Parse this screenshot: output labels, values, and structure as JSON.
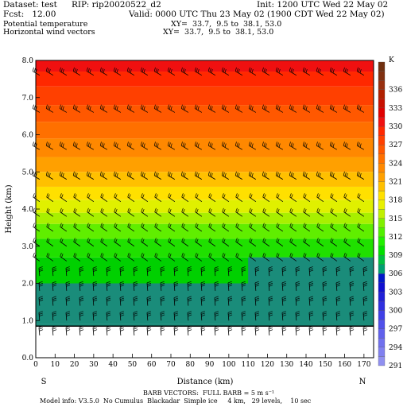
{
  "header": {
    "dataset": "Dataset: test",
    "rip": "RIP: rip20020522_d2",
    "init": "Init: 1200 UTC Wed 22 May 02",
    "fcst": "Fcst:   12.00",
    "valid": "Valid: 0000 UTC Thu 23 May 02 (1900 CDT Wed 22 May 02)",
    "field1": "Potential temperature",
    "field1_xy": "XY=  33.7,  9.5 to  38.1, 53.0",
    "field2": "Horizontal wind vectors",
    "field2_xy": "XY=  33.7,  9.5 to  38.1, 53.0"
  },
  "footer": {
    "barb_note": "BARB VECTORS:  FULL BARB = 5 m s⁻¹",
    "model_info": "Model info: V3.5.0  No Cumulus  Blackadar  Simple ice     4 km,   29 levels,    10 sec",
    "south": "S",
    "north": "N"
  },
  "colors": {
    "terrain_white": "#ffffff",
    "teal": "#1a8c7a",
    "barb": "#000000"
  },
  "chart_data": {
    "type": "heatmap",
    "title": "",
    "xlabel": "Distance (km)",
    "ylabel": "Height (km)",
    "xlim": [
      0,
      175
    ],
    "ylim": [
      0,
      8
    ],
    "x_ticks": [
      "0",
      "10",
      "20",
      "30",
      "40",
      "50",
      "60",
      "70",
      "80",
      "90",
      "100",
      "110",
      "120",
      "130",
      "140",
      "150",
      "160",
      "170"
    ],
    "y_ticks": [
      "0.0",
      "1.0",
      "2.0",
      "3.0",
      "4.0",
      "5.0",
      "6.0",
      "7.0",
      "8.0"
    ],
    "colorbar_unit": "K",
    "colorbar_levels": [
      {
        "value": "291",
        "color": "#9090f0"
      },
      {
        "value": "",
        "color": "#8080f0"
      },
      {
        "value": "294",
        "color": "#7070ee"
      },
      {
        "value": "",
        "color": "#6060ec"
      },
      {
        "value": "297",
        "color": "#5050ea"
      },
      {
        "value": "",
        "color": "#4040e6"
      },
      {
        "value": "300",
        "color": "#3030e0"
      },
      {
        "value": "",
        "color": "#2020d8"
      },
      {
        "value": "303",
        "color": "#1010d0"
      },
      {
        "value": "",
        "color": "#0018c8"
      },
      {
        "value": "306",
        "color": "#00a070"
      },
      {
        "value": "",
        "color": "#00c040"
      },
      {
        "value": "309",
        "color": "#00e000"
      },
      {
        "value": "",
        "color": "#20f000"
      },
      {
        "value": "312",
        "color": "#50f000"
      },
      {
        "value": "",
        "color": "#80f000"
      },
      {
        "value": "315",
        "color": "#c0f000"
      },
      {
        "value": "",
        "color": "#e8f000"
      },
      {
        "value": "318",
        "color": "#ffe000"
      },
      {
        "value": "",
        "color": "#ffc000"
      },
      {
        "value": "321",
        "color": "#ffa000"
      },
      {
        "value": "",
        "color": "#ff8800"
      },
      {
        "value": "324",
        "color": "#ff7000"
      },
      {
        "value": "",
        "color": "#ff5800"
      },
      {
        "value": "327",
        "color": "#ff4000"
      },
      {
        "value": "",
        "color": "#ff2800"
      },
      {
        "value": "330",
        "color": "#f01010"
      },
      {
        "value": "",
        "color": "#e00000"
      },
      {
        "value": "333",
        "color": "#c81000"
      },
      {
        "value": "",
        "color": "#b02000"
      },
      {
        "value": "336",
        "color": "#983010"
      },
      {
        "value": "",
        "color": "#803010"
      },
      {
        "value": "",
        "color": "#703010"
      }
    ],
    "theta_bands": [
      {
        "from_km": 0.0,
        "to_km": 0.9,
        "theta": "306",
        "color": "#1a8c7a"
      },
      {
        "from_km": 0.9,
        "to_km": 2.0,
        "theta": "306",
        "color": "#1a8c7a"
      },
      {
        "from_km": 2.0,
        "to_km": 2.7,
        "theta": "309",
        "color": "#00d000"
      },
      {
        "from_km": 2.7,
        "to_km": 3.2,
        "theta": "310",
        "color": "#20e000"
      },
      {
        "from_km": 3.2,
        "to_km": 3.6,
        "theta": "312",
        "color": "#60ee00"
      },
      {
        "from_km": 3.6,
        "to_km": 3.9,
        "theta": "315",
        "color": "#a8f000"
      },
      {
        "from_km": 3.9,
        "to_km": 4.25,
        "theta": "316",
        "color": "#e0f000"
      },
      {
        "from_km": 4.25,
        "to_km": 4.6,
        "theta": "318",
        "color": "#ffe000"
      },
      {
        "from_km": 4.6,
        "to_km": 5.0,
        "theta": "319",
        "color": "#ffc000"
      },
      {
        "from_km": 5.0,
        "to_km": 5.4,
        "theta": "321",
        "color": "#ffa000"
      },
      {
        "from_km": 5.4,
        "to_km": 5.9,
        "theta": "323",
        "color": "#ff8800"
      },
      {
        "from_km": 5.9,
        "to_km": 6.35,
        "theta": "324",
        "color": "#ff7000"
      },
      {
        "from_km": 6.35,
        "to_km": 6.8,
        "theta": "326",
        "color": "#ff5800"
      },
      {
        "from_km": 6.8,
        "to_km": 7.3,
        "theta": "327",
        "color": "#ff4000"
      },
      {
        "from_km": 7.3,
        "to_km": 7.7,
        "theta": "329",
        "color": "#ff2800"
      },
      {
        "from_km": 7.7,
        "to_km": 8.0,
        "theta": "330",
        "color": "#f01010"
      }
    ],
    "teal_region": {
      "from_km": 110,
      "to_km": 175,
      "bottom_km": 0.9,
      "top_km": 2.7
    },
    "terrain_height_km": 0.85,
    "barb_columns_km": [
      2,
      9,
      16,
      23,
      30,
      37,
      44,
      51,
      58,
      65,
      72,
      79,
      86,
      93,
      100,
      107,
      114,
      121,
      128,
      135,
      142,
      149,
      156,
      163,
      170
    ],
    "barb_levels_km": [
      0.6,
      1.0,
      1.4,
      1.8,
      2.2,
      2.6,
      3.0,
      3.4,
      3.8,
      4.2,
      4.8,
      5.6,
      6.6,
      7.6
    ]
  }
}
